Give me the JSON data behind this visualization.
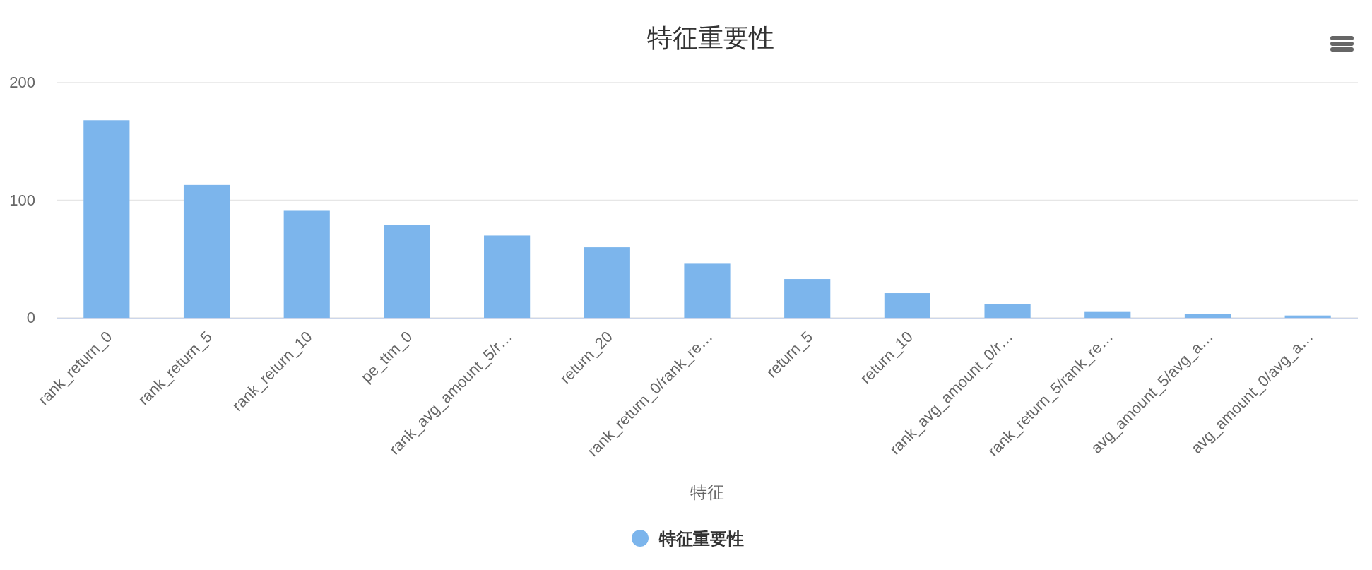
{
  "chart_data": {
    "type": "bar",
    "title": "特征重要性",
    "xlabel": "特征",
    "categories": [
      "rank_return_0",
      "rank_return_5",
      "rank_return_10",
      "pe_ttm_0",
      "rank_avg_amount_5/r…",
      "return_20",
      "rank_return_0/rank_re…",
      "return_5",
      "return_10",
      "rank_avg_amount_0/r…",
      "rank_return_5/rank_re…",
      "avg_amount_5/avg_a…",
      "avg_amount_0/avg_a…"
    ],
    "series": [
      {
        "name": "特征重要性",
        "color": "#7cb5ec",
        "values": [
          168,
          113,
          91,
          79,
          70,
          60,
          46,
          33,
          21,
          12,
          5,
          3,
          2
        ]
      }
    ],
    "ylim": [
      0,
      200
    ],
    "yticks": [
      0,
      100,
      200
    ],
    "grid": "y",
    "legend": "bottom"
  }
}
